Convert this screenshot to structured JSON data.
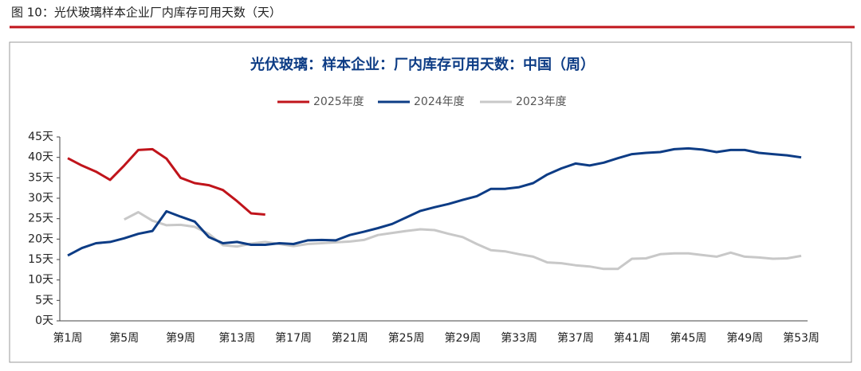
{
  "header": {
    "title": "图 10：光伏玻璃样本企业厂内库存可用天数（天）"
  },
  "chart_data": {
    "type": "line",
    "title": "光伏玻璃：样本企业：厂内库存可用天数：中国（周）",
    "categories": [
      "第1周",
      null,
      null,
      null,
      "第5周",
      null,
      null,
      null,
      "第9周",
      null,
      null,
      null,
      "第13周",
      null,
      null,
      null,
      "第17周",
      null,
      null,
      null,
      "第21周",
      null,
      null,
      null,
      "第25周",
      null,
      null,
      null,
      "第29周",
      null,
      null,
      null,
      "第33周",
      null,
      null,
      null,
      "第37周",
      null,
      null,
      null,
      "第41周",
      null,
      null,
      null,
      "第45周",
      null,
      null,
      null,
      "第49周",
      null,
      null,
      null,
      "第53周"
    ],
    "series": [
      {
        "name": "2025年度",
        "color": "#c0141b",
        "values": [
          39.8,
          38,
          36.5,
          34.5,
          38,
          41.8,
          42,
          39.7,
          35,
          33.7,
          33.2,
          32,
          29.3,
          26.3,
          26,
          null,
          null,
          null,
          null,
          null,
          null,
          null,
          null,
          null,
          null,
          null,
          null,
          null,
          null,
          null,
          null,
          null,
          null,
          null,
          null,
          null,
          null,
          null,
          null,
          null,
          null,
          null,
          null,
          null,
          null,
          null,
          null,
          null,
          null,
          null,
          null,
          null,
          null
        ]
      },
      {
        "name": "2024年度",
        "color": "#0d3c85",
        "values": [
          16,
          17.8,
          19,
          19.3,
          20.2,
          21.3,
          22,
          26.8,
          25.5,
          24.3,
          20.5,
          19,
          19.3,
          18.6,
          18.6,
          19,
          18.8,
          19.7,
          19.8,
          19.7,
          21,
          21.8,
          22.7,
          23.7,
          25.3,
          26.9,
          27.8,
          28.6,
          29.6,
          30.5,
          32.3,
          32.3,
          32.7,
          33.7,
          35.8,
          37.3,
          38.5,
          38,
          38.7,
          39.8,
          40.8,
          41.1,
          41.3,
          42,
          42.2,
          41.9,
          41.3,
          41.8,
          41.8,
          41.1,
          40.8,
          40.5,
          40
        ]
      },
      {
        "name": "2023年度",
        "color": "#c8c8c8",
        "values": [
          null,
          null,
          null,
          null,
          24.8,
          26.6,
          24.5,
          23.4,
          23.5,
          23,
          21.3,
          18.5,
          18.2,
          18.9,
          19.3,
          18.8,
          18.3,
          18.8,
          19,
          19.2,
          19.4,
          19.8,
          21,
          21.5,
          22,
          22.4,
          22.2,
          21.3,
          20.5,
          18.8,
          17.3,
          17,
          16.3,
          15.7,
          14.3,
          14.1,
          13.6,
          13.3,
          12.7,
          12.7,
          15.2,
          15.3,
          16.3,
          16.5,
          16.5,
          16.1,
          15.7,
          16.7,
          15.7,
          15.5,
          15.2,
          15.3,
          15.9
        ]
      }
    ],
    "ylim": [
      0,
      45
    ],
    "yticks": [
      {
        "value": 0,
        "label": "0天"
      },
      {
        "value": 5,
        "label": "5天"
      },
      {
        "value": 10,
        "label": "10天"
      },
      {
        "value": 15,
        "label": "15天"
      },
      {
        "value": 20,
        "label": "20天"
      },
      {
        "value": 25,
        "label": "25天"
      },
      {
        "value": 30,
        "label": "30天"
      },
      {
        "value": 35,
        "label": "35天"
      },
      {
        "value": 40,
        "label": "40天"
      },
      {
        "value": 45,
        "label": "45天"
      }
    ],
    "legend": "top"
  }
}
